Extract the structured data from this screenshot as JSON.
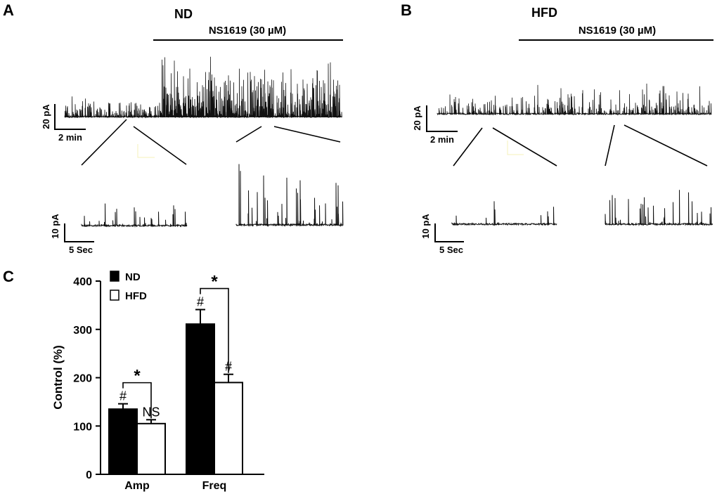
{
  "panels": {
    "A": {
      "letter": "A",
      "title": "ND",
      "drug_label": "NS1619 (30 µM)",
      "scale_main": {
        "y_label": "20 pA",
        "x_label": "2 min"
      },
      "scale_zoom": {
        "y_label": "10 pA",
        "x_label": "5 Sec"
      }
    },
    "B": {
      "letter": "B",
      "title": "HFD",
      "drug_label": "NS1619 (30 µM)",
      "scale_main": {
        "y_label": "20 pA",
        "x_label": "2 min"
      },
      "scale_zoom": {
        "y_label": "10 pA",
        "x_label": "5 Sec"
      }
    },
    "C": {
      "letter": "C"
    }
  },
  "colors": {
    "nd_fill": "#000000",
    "hfd_fill": "#ffffff",
    "trace": "#111111"
  },
  "chart_data": {
    "type": "bar",
    "categories": [
      "Amp",
      "Freq"
    ],
    "series": [
      {
        "name": "ND",
        "values": [
          135,
          311
        ],
        "errors": [
          11,
          30
        ],
        "marks": [
          "#",
          "#"
        ]
      },
      {
        "name": "HFD",
        "values": [
          105,
          190
        ],
        "errors": [
          8,
          17
        ],
        "marks": [
          "NS",
          "#"
        ]
      }
    ],
    "significance": [
      "*",
      "*"
    ],
    "ylabel": "Control (%)",
    "xlabel": "",
    "ylim": [
      0,
      400
    ],
    "yticks": [
      0,
      100,
      200,
      300,
      400
    ],
    "legend_position": "top-left",
    "grid": false
  }
}
